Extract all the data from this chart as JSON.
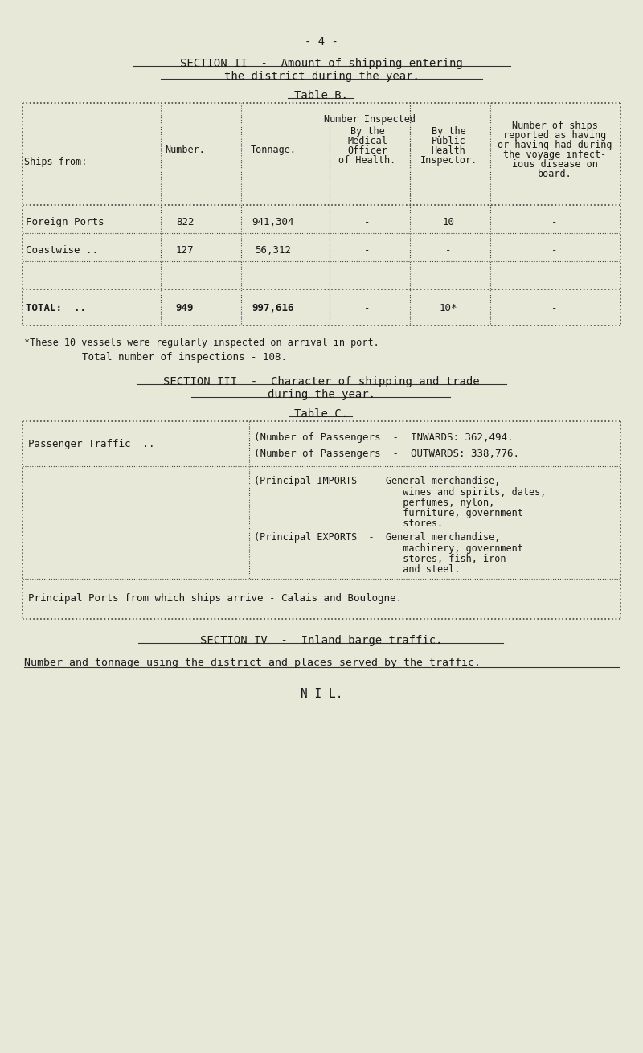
{
  "bg_color": "#e8e8d8",
  "text_color": "#1a1a1a",
  "page_number": "- 4 -",
  "section2_title_line1": "SECTION II  -  Amount of shipping entering",
  "section2_title_line2": "the district during the year.",
  "table_b_title": "Table B.",
  "table_b_headers": {
    "col0": "Ships from:",
    "col1": "Number.",
    "col2": "Tonnage.",
    "col3_line1": "Number Inspected",
    "col3_line2": "By the",
    "col3_line3": "Medical",
    "col3_line4": "Officer",
    "col3_line5": "of Health.",
    "col4_line1": "By the",
    "col4_line2": "Public",
    "col4_line3": "Health",
    "col4_line4": "Inspector.",
    "col5_line1": "Number of ships",
    "col5_line2": "reported as having",
    "col5_line3": "or having had during",
    "col5_line4": "the voyage infect-",
    "col5_line5": "ious disease on",
    "col5_line6": "board."
  },
  "table_b_rows": [
    {
      "col0": "Foreign Ports",
      "col1": "822",
      "col2": "941,304",
      "col3": "-",
      "col4": "10",
      "col5": "-"
    },
    {
      "col0": "Coastwise ..",
      "col1": "127",
      "col2": "56,312",
      "col3": "-",
      "col4": "-",
      "col5": "-"
    },
    {
      "col0": "TOTAL:  ..",
      "col1": "949",
      "col2": "997,616",
      "col3": "-",
      "col4": "10*",
      "col5": "-"
    }
  ],
  "footnote_line1": "*These 10 vessels were regularly inspected on arrival in port.",
  "footnote_line2": "Total number of inspections - 108.",
  "section3_title_line1": "SECTION III  -  Character of shipping and trade",
  "section3_title_line2": "during the year.",
  "table_c_title": "Table C.",
  "table_c_row1_left": "Passenger Traffic  ..",
  "table_c_row1_right_line1": "(Number of Passengers  -  INWARDS: 362,494.",
  "table_c_row1_right_line2": "(Number of Passengers  -  OUTWARDS: 338,776.",
  "table_c_row2_right_imports_label": "(Principal IMPORTS  -  General merchandise,",
  "table_c_row2_right_imports_line2": "                       wines and spirits, dates,",
  "table_c_row2_right_imports_line3": "                       perfumes, nylon,",
  "table_c_row2_right_imports_line4": "                       furniture, government",
  "table_c_row2_right_imports_line5": "                       stores.",
  "table_c_row2_right_exports_label": "(Principal EXPORTS  -  General merchandise,",
  "table_c_row2_right_exports_line2": "                       machinery, government",
  "table_c_row2_right_exports_line3": "                       stores, fish, iron",
  "table_c_row2_right_exports_line4": "                       and steel.",
  "table_c_bottom": "Principal Ports from which ships arrive - Calais and Boulogne.",
  "section4_title": "SECTION IV  -  Inland barge traffic.",
  "section4_subtitle": "Number and tonnage using the district and places served by the traffic.",
  "section4_content": "N I L."
}
